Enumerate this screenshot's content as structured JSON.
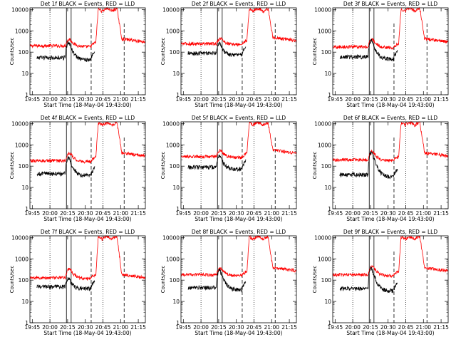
{
  "figure": {
    "x_tick_labels": [
      "19:45",
      "20:00",
      "20:15",
      "20:30",
      "20:45",
      "21:00",
      "21:15"
    ],
    "y_tick_labels": [
      "1",
      "10",
      "100",
      "1000",
      "10000"
    ],
    "xlabel": "Start Time (18-May-04 19:43:00)",
    "ylabel": "Counts/sec",
    "colors": {
      "events": "#000000",
      "lld": "#ff0000"
    }
  },
  "chart_data": [
    {
      "type": "line",
      "title": "Det 1f BLACK = Events, RED = LLD",
      "xlabel": "Start Time (18-May-04 19:43:00)",
      "ylabel": "Counts/sec",
      "y_scale": "log",
      "ylim": [
        1,
        12000
      ],
      "x_range_minutes": [
        0,
        98
      ],
      "series": [
        {
          "key": "events",
          "color": "#000000",
          "baseline": 55,
          "peak": 300
        },
        {
          "key": "lld",
          "color": "#ff0000",
          "baseline": 200,
          "peak": 400,
          "flare_max": 11000,
          "post_flare": 300
        }
      ]
    },
    {
      "type": "line",
      "title": "Det 2f BLACK = Events, RED = LLD",
      "xlabel": "Start Time (18-May-04 19:43:00)",
      "ylabel": "Counts/sec",
      "y_scale": "log",
      "ylim": [
        1,
        12000
      ],
      "x_range_minutes": [
        0,
        98
      ],
      "series": [
        {
          "key": "events",
          "color": "#000000",
          "baseline": 90,
          "peak": 250
        },
        {
          "key": "lld",
          "color": "#ff0000",
          "baseline": 250,
          "peak": 450,
          "flare_max": 11000,
          "post_flare": 350
        }
      ]
    },
    {
      "type": "line",
      "title": "Det 3f BLACK = Events, RED = LLD",
      "xlabel": "Start Time (18-May-04 19:43:00)",
      "ylabel": "Counts/sec",
      "y_scale": "log",
      "ylim": [
        1,
        12000
      ],
      "x_range_minutes": [
        0,
        98
      ],
      "series": [
        {
          "key": "events",
          "color": "#000000",
          "baseline": 60,
          "peak": 350
        },
        {
          "key": "lld",
          "color": "#ff0000",
          "baseline": 180,
          "peak": 400,
          "flare_max": 11000,
          "post_flare": 300
        }
      ]
    },
    {
      "type": "line",
      "title": "Det 4f BLACK = Events, RED = LLD",
      "xlabel": "Start Time (18-May-04 19:43:00)",
      "ylabel": "Counts/sec",
      "y_scale": "log",
      "ylim": [
        1,
        12000
      ],
      "x_range_minutes": [
        0,
        98
      ],
      "series": [
        {
          "key": "events",
          "color": "#000000",
          "baseline": 45,
          "peak": 250
        },
        {
          "key": "lld",
          "color": "#ff0000",
          "baseline": 180,
          "peak": 420,
          "flare_max": 11000,
          "post_flare": 300
        }
      ]
    },
    {
      "type": "line",
      "title": "Det 5f BLACK = Events, RED = LLD",
      "xlabel": "Start Time (18-May-04 19:43:00)",
      "ylabel": "Counts/sec",
      "y_scale": "log",
      "ylim": [
        1,
        12000
      ],
      "x_range_minutes": [
        0,
        98
      ],
      "series": [
        {
          "key": "events",
          "color": "#000000",
          "baseline": 90,
          "peak": 300
        },
        {
          "key": "lld",
          "color": "#ff0000",
          "baseline": 280,
          "peak": 550,
          "flare_max": 11000,
          "post_flare": 400
        }
      ]
    },
    {
      "type": "line",
      "title": "Det 6f BLACK = Events, RED = LLD",
      "xlabel": "Start Time (18-May-04 19:43:00)",
      "ylabel": "Counts/sec",
      "y_scale": "log",
      "ylim": [
        1,
        12000
      ],
      "x_range_minutes": [
        0,
        98
      ],
      "series": [
        {
          "key": "events",
          "color": "#000000",
          "baseline": 40,
          "peak": 450
        },
        {
          "key": "lld",
          "color": "#ff0000",
          "baseline": 200,
          "peak": 500,
          "flare_max": 11000,
          "post_flare": 300
        }
      ]
    },
    {
      "type": "line",
      "title": "Det 7f BLACK = Events, RED = LLD",
      "xlabel": "Start Time (18-May-04 19:43:00)",
      "ylabel": "Counts/sec",
      "y_scale": "log",
      "ylim": [
        1,
        12000
      ],
      "x_range_minutes": [
        0,
        98
      ],
      "series": [
        {
          "key": "events",
          "color": "#000000",
          "baseline": 50,
          "peak": 120
        },
        {
          "key": "lld",
          "color": "#ff0000",
          "baseline": 130,
          "peak": 350,
          "flare_max": 11000,
          "post_flare": 130
        }
      ]
    },
    {
      "type": "line",
      "title": "Det 8f BLACK = Events, RED = LLD",
      "xlabel": "Start Time (18-May-04 19:43:00)",
      "ylabel": "Counts/sec",
      "y_scale": "log",
      "ylim": [
        1,
        12000
      ],
      "x_range_minutes": [
        0,
        98
      ],
      "series": [
        {
          "key": "events",
          "color": "#000000",
          "baseline": 45,
          "peak": 300
        },
        {
          "key": "lld",
          "color": "#ff0000",
          "baseline": 180,
          "peak": 380,
          "flare_max": 11000,
          "post_flare": 280
        }
      ]
    },
    {
      "type": "line",
      "title": "Det 9f BLACK = Events, RED = LLD",
      "xlabel": "Start Time (18-May-04 19:43:00)",
      "ylabel": "Counts/sec",
      "y_scale": "log",
      "ylim": [
        1,
        12000
      ],
      "x_range_minutes": [
        0,
        98
      ],
      "series": [
        {
          "key": "events",
          "color": "#000000",
          "baseline": 40,
          "peak": 350
        },
        {
          "key": "lld",
          "color": "#ff0000",
          "baseline": 180,
          "peak": 450,
          "flare_max": 11000,
          "post_flare": 270
        }
      ]
    }
  ]
}
